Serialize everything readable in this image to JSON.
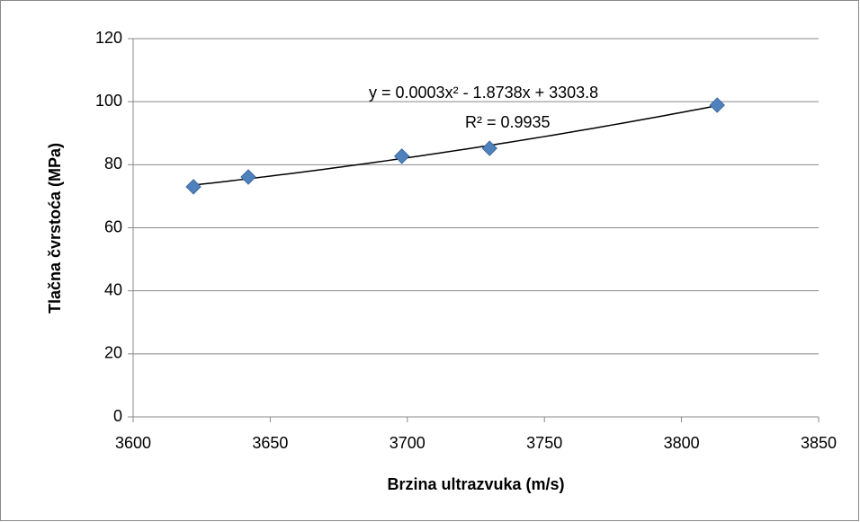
{
  "chart_data": {
    "type": "scatter",
    "x_label": "Brzina ultrazvuka (m/s)",
    "y_label": "Tlačna čvrstoća (MPa)",
    "series": [
      {
        "name": "Tlačna čvrstoća",
        "color": "#4f81bd",
        "x": [
          3622,
          3642,
          3698,
          3730,
          3813
        ],
        "values": [
          73.0,
          76.1,
          82.7,
          85.2,
          98.9
        ]
      }
    ],
    "trendline": {
      "type": "polynomial",
      "order": 2,
      "color": "#000000",
      "equation": "y = 0.0003x² - 1.8738x + 3303.8",
      "r_squared": "R² = 0.9935"
    },
    "xlim": [
      3600,
      3850
    ],
    "xticks": [
      3600,
      3650,
      3700,
      3750,
      3800,
      3850
    ],
    "ylim": [
      0,
      120
    ],
    "yticks": [
      0,
      20,
      40,
      60,
      80,
      100,
      120
    ],
    "grid": true,
    "legend": false
  }
}
